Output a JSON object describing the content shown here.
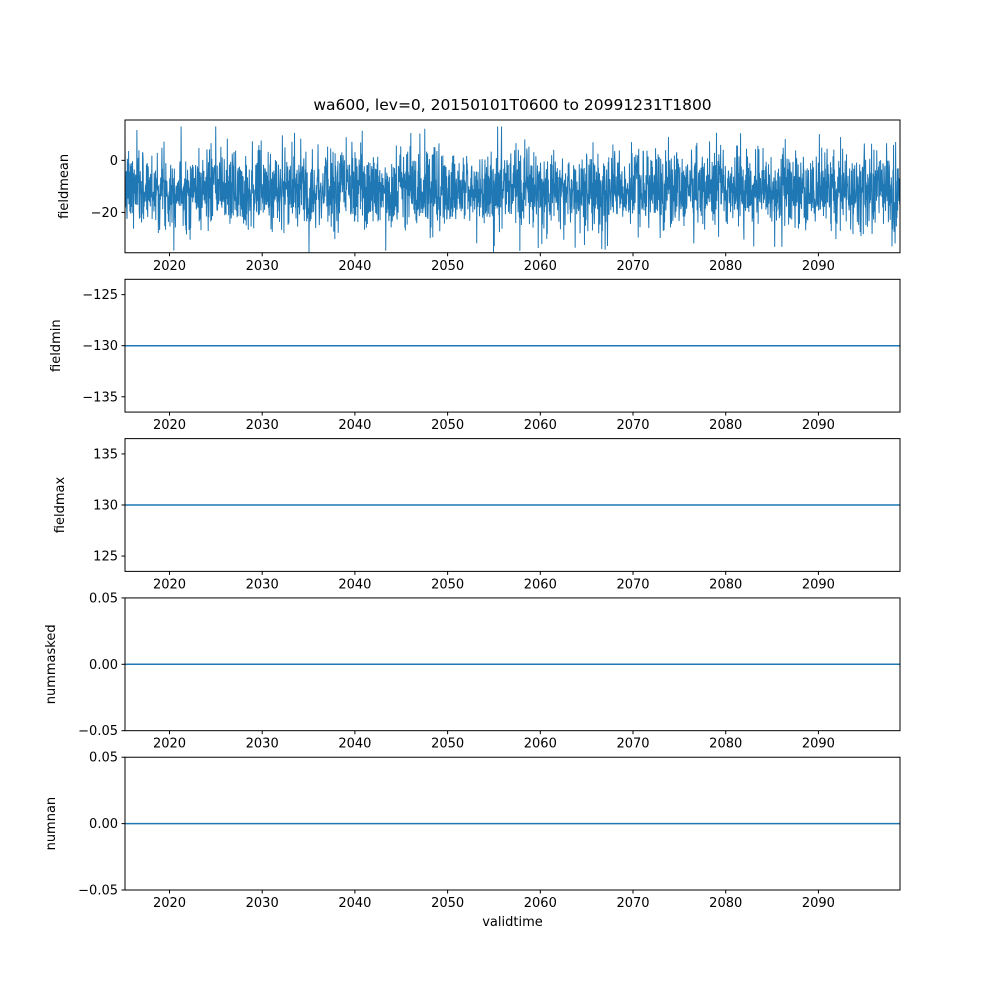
{
  "chart_data": {
    "type": "line",
    "title": "wa600, lev=0, 20150101T0600 to 20991231T1800",
    "xlabel": "validtime",
    "x_ticks": [
      2020,
      2030,
      2040,
      2050,
      2060,
      2070,
      2080,
      2090
    ],
    "xlim": [
      2015.2,
      2098.8
    ],
    "line_color": "#1f77b4",
    "axes_color": "#000000",
    "grid": false,
    "legend": "none",
    "subplots": [
      {
        "ylabel": "fieldmean",
        "ylim": [
          -35.5,
          15.5
        ],
        "yticks": [
          {
            "v": 0,
            "label": "0"
          },
          {
            "v": -20,
            "label": "−20"
          }
        ],
        "series": {
          "kind": "noise",
          "description": "dense noisy time series, mean ≈ -11, typical band -25 to 3, extremes ≈ -35 to +13",
          "mean": -11,
          "std": 7.5,
          "clip_min": -35.3,
          "clip_max": 13,
          "seed": 7,
          "n": 3000
        }
      },
      {
        "ylabel": "fieldmin",
        "ylim": [
          -136.5,
          -123.5
        ],
        "yticks": [
          {
            "v": -125,
            "label": "−125"
          },
          {
            "v": -130,
            "label": "−130"
          },
          {
            "v": -135,
            "label": "−135"
          }
        ],
        "series": {
          "kind": "constant",
          "value": -130,
          "description": "flat line at -130"
        }
      },
      {
        "ylabel": "fieldmax",
        "ylim": [
          123.5,
          136.5
        ],
        "yticks": [
          {
            "v": 135,
            "label": "135"
          },
          {
            "v": 130,
            "label": "130"
          },
          {
            "v": 125,
            "label": "125"
          }
        ],
        "series": {
          "kind": "constant",
          "value": 130,
          "description": "flat line at 130"
        }
      },
      {
        "ylabel": "nummasked",
        "ylim": [
          -0.05,
          0.05
        ],
        "yticks": [
          {
            "v": 0.05,
            "label": "0.05"
          },
          {
            "v": 0,
            "label": "0.00"
          },
          {
            "v": -0.05,
            "label": "−0.05"
          }
        ],
        "series": {
          "kind": "constant",
          "value": 0,
          "description": "flat line at 0"
        }
      },
      {
        "ylabel": "numnan",
        "ylim": [
          -0.05,
          0.05
        ],
        "yticks": [
          {
            "v": 0.05,
            "label": "0.05"
          },
          {
            "v": 0,
            "label": "0.00"
          },
          {
            "v": -0.05,
            "label": "−0.05"
          }
        ],
        "series": {
          "kind": "constant",
          "value": 0,
          "description": "flat line at 0"
        }
      }
    ]
  }
}
